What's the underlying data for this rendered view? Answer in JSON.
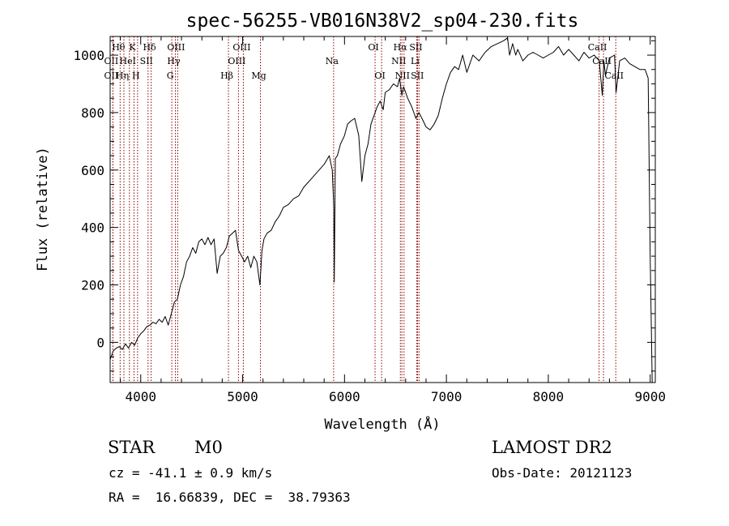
{
  "chart_data": {
    "type": "line",
    "title": "spec-56255-VB016N38V2_sp04-230.fits",
    "xlabel": "Wavelength (Å)",
    "ylabel": "Flux (relative)",
    "xlim": [
      3700,
      9050
    ],
    "ylim": [
      -140,
      1065
    ],
    "x_ticks": [
      4000,
      5000,
      6000,
      7000,
      8000,
      9000
    ],
    "y_ticks": [
      0,
      200,
      400,
      600,
      800,
      1000
    ],
    "grid": false,
    "line_color": "#000000",
    "marker_color": "#8b0000",
    "series": [
      {
        "x": [
          3700,
          3730,
          3760,
          3790,
          3820,
          3850,
          3880,
          3910,
          3940,
          3970,
          4000,
          4030,
          4060,
          4090,
          4120,
          4150,
          4180,
          4210,
          4240,
          4270,
          4300,
          4330,
          4360,
          4390,
          4420,
          4450,
          4480,
          4510,
          4540,
          4570,
          4600,
          4630,
          4660,
          4690,
          4720,
          4750,
          4780,
          4810,
          4840,
          4870,
          4900,
          4930,
          4960,
          4990,
          5020,
          5050,
          5080,
          5110,
          5140,
          5170,
          5190,
          5210,
          5240,
          5280,
          5320,
          5360,
          5400,
          5450,
          5500,
          5550,
          5600,
          5650,
          5700,
          5750,
          5800,
          5850,
          5880,
          5895,
          5900,
          5910,
          5930,
          5960,
          6000,
          6030,
          6060,
          6100,
          6140,
          6170,
          6200,
          6230,
          6260,
          6290,
          6320,
          6350,
          6380,
          6400,
          6440,
          6480,
          6520,
          6540,
          6563,
          6580,
          6620,
          6660,
          6700,
          6730,
          6760,
          6800,
          6840,
          6880,
          6920,
          6960,
          7000,
          7040,
          7080,
          7120,
          7160,
          7200,
          7260,
          7320,
          7380,
          7440,
          7500,
          7560,
          7600,
          7620,
          7650,
          7680,
          7700,
          7750,
          7800,
          7850,
          7900,
          7950,
          8000,
          8050,
          8100,
          8150,
          8200,
          8250,
          8300,
          8350,
          8400,
          8450,
          8500,
          8530,
          8545,
          8560,
          8600,
          8650,
          8665,
          8700,
          8750,
          8800,
          8850,
          8900,
          8950,
          8980,
          9000,
          9020
        ],
        "values": [
          -60,
          -30,
          -20,
          -15,
          -25,
          -5,
          -20,
          0,
          -10,
          15,
          30,
          40,
          55,
          60,
          70,
          65,
          80,
          70,
          90,
          60,
          100,
          140,
          150,
          200,
          230,
          280,
          300,
          330,
          310,
          350,
          360,
          340,
          365,
          340,
          360,
          240,
          300,
          310,
          330,
          370,
          380,
          390,
          320,
          300,
          280,
          300,
          260,
          300,
          280,
          200,
          320,
          360,
          380,
          390,
          420,
          440,
          470,
          480,
          500,
          510,
          540,
          560,
          580,
          600,
          620,
          650,
          600,
          470,
          210,
          640,
          650,
          690,
          720,
          760,
          770,
          780,
          720,
          560,
          650,
          690,
          760,
          790,
          820,
          840,
          810,
          870,
          880,
          900,
          890,
          920,
          860,
          890,
          850,
          820,
          780,
          800,
          780,
          750,
          740,
          760,
          790,
          850,
          900,
          940,
          960,
          950,
          1000,
          940,
          1000,
          980,
          1010,
          1030,
          1040,
          1050,
          1060,
          1000,
          1040,
          1000,
          1020,
          980,
          1000,
          1010,
          1000,
          990,
          1000,
          1010,
          1030,
          1000,
          1020,
          1000,
          980,
          1010,
          990,
          1000,
          980,
          860,
          980,
          930,
          990,
          1000,
          870,
          980,
          990,
          970,
          960,
          950,
          950,
          920,
          300,
          -140
        ]
      }
    ],
    "line_markers": [
      {
        "label": "Hθ",
        "x": 3798,
        "row": 1
      },
      {
        "label": "OII",
        "x": 3727,
        "row": 2
      },
      {
        "label": "OII",
        "x": 3727,
        "row": 3
      },
      {
        "label": "Hη",
        "x": 3835,
        "row": 3
      },
      {
        "label": "K",
        "x": 3934,
        "row": 1
      },
      {
        "label": "H",
        "x": 3969,
        "row": 3
      },
      {
        "label": "HeI",
        "x": 3889,
        "row": 2
      },
      {
        "label": "SII",
        "x": 4072,
        "row": 2
      },
      {
        "label": "Hδ",
        "x": 4102,
        "row": 1
      },
      {
        "label": "OIII",
        "x": 4363,
        "row": 1
      },
      {
        "label": "Hγ",
        "x": 4340,
        "row": 2
      },
      {
        "label": "G",
        "x": 4305,
        "row": 3
      },
      {
        "label": "Hβ",
        "x": 4861,
        "row": 3
      },
      {
        "label": "OIII",
        "x": 5007,
        "row": 1
      },
      {
        "label": "OIII",
        "x": 4959,
        "row": 2
      },
      {
        "label": "Mg",
        "x": 5175,
        "row": 3
      },
      {
        "label": "Na",
        "x": 5893,
        "row": 2
      },
      {
        "label": "OI",
        "x": 6300,
        "row": 1
      },
      {
        "label": "OI",
        "x": 6364,
        "row": 3
      },
      {
        "label": "Hα",
        "x": 6563,
        "row": 1
      },
      {
        "label": "NII",
        "x": 6548,
        "row": 2
      },
      {
        "label": "NII",
        "x": 6584,
        "row": 3
      },
      {
        "label": "SII",
        "x": 6717,
        "row": 1
      },
      {
        "label": "Li",
        "x": 6708,
        "row": 2
      },
      {
        "label": "SII",
        "x": 6731,
        "row": 3
      },
      {
        "label": "CaII",
        "x": 8498,
        "row": 1
      },
      {
        "label": "CaII",
        "x": 8542,
        "row": 2
      },
      {
        "label": "CaII",
        "x": 8662,
        "row": 3
      }
    ]
  },
  "info": {
    "class_label": "STAR",
    "subclass_label": "M0",
    "survey_label": "LAMOST DR2",
    "cz_text": "cz = -41.1 ± 0.9 km/s",
    "obs_date_text": "Obs-Date: 20121123",
    "coords_text": "RA =  16.66839, DEC =  38.79363"
  }
}
